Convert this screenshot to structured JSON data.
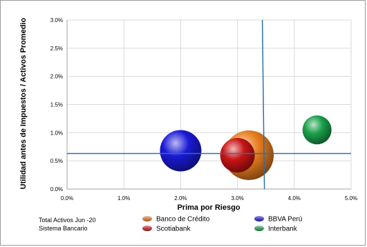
{
  "chart_data": {
    "type": "bubble",
    "xlabel": "Prima por Riesgo",
    "ylabel": "Utilidad antes de Impuestos / Activos Promedio",
    "xlim": [
      0,
      5.0
    ],
    "ylim": [
      0,
      3.0
    ],
    "x_ticks": [
      "0.0%",
      "1.0%",
      "2.0%",
      "3.0%",
      "4.0%",
      "5.0%"
    ],
    "y_ticks": [
      "0.0%",
      "0.5%",
      "1.0%",
      "1.5%",
      "2.0%",
      "2.5%",
      "3.0%"
    ],
    "x_tick_values": [
      0,
      1,
      2,
      3,
      4,
      5
    ],
    "y_tick_values": [
      0,
      0.5,
      1.0,
      1.5,
      2.0,
      2.5,
      3.0
    ],
    "grid": true,
    "reference_lines": {
      "x": 3.45,
      "y": 0.63
    },
    "series": [
      {
        "name": "Banco de Crédito",
        "x": 3.2,
        "y": 0.6,
        "size": 36,
        "color": "#e87d1e"
      },
      {
        "name": "BBVA Perú",
        "x": 2.0,
        "y": 0.68,
        "size": 30,
        "color": "#1a1ad6"
      },
      {
        "name": "Scotiabank",
        "x": 3.0,
        "y": 0.6,
        "size": 25,
        "color": "#c81414"
      },
      {
        "name": "Interbank",
        "x": 4.4,
        "y": 1.05,
        "size": 21,
        "color": "#1aa04a"
      }
    ],
    "legend_position": "bottom"
  },
  "footnote": {
    "line1": "Total Activos  Jun -20",
    "line2": "Sistema Bancario"
  },
  "colors": {
    "grid": "#d9d9d9",
    "axis": "#a0a0a0",
    "reference": "#2a6fb0"
  }
}
